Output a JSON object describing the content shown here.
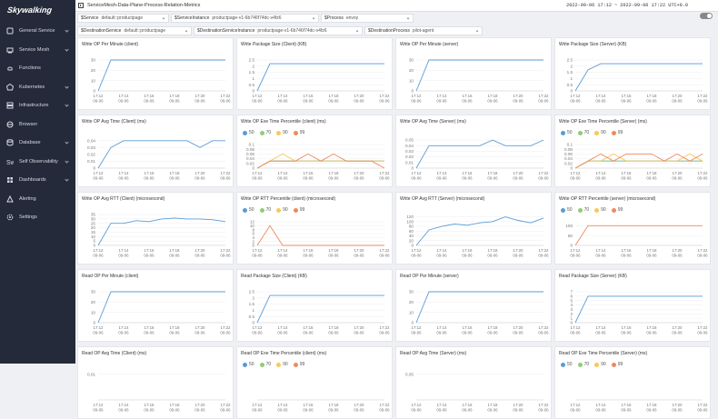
{
  "brand": {
    "name": "Skywalking"
  },
  "sidebar": {
    "items": [
      {
        "label": "General Service",
        "icon": "general-service-icon",
        "chevron": true
      },
      {
        "label": "Service Mesh",
        "icon": "service-mesh-icon",
        "chevron": true
      },
      {
        "label": "Functions",
        "icon": "functions-icon",
        "chevron": false
      },
      {
        "label": "Kubernetes",
        "icon": "kubernetes-icon",
        "chevron": true
      },
      {
        "label": "Infrastructure",
        "icon": "infrastructure-icon",
        "chevron": true
      },
      {
        "label": "Browser",
        "icon": "browser-icon",
        "chevron": false
      },
      {
        "label": "Database",
        "icon": "database-icon",
        "chevron": true
      },
      {
        "label": "Self Observability",
        "icon": "self-observability-icon",
        "chevron": true
      },
      {
        "label": "Dashboards",
        "icon": "dashboards-icon",
        "chevron": true
      },
      {
        "label": "Alerting",
        "icon": "alerting-icon",
        "chevron": false
      },
      {
        "label": "Settings",
        "icon": "settings-icon",
        "chevron": false
      }
    ]
  },
  "header": {
    "title": "ServiceMesh-Data-Plane-Process-Relation-Metrics",
    "time_range": "2022-09-06 17:12 ~ 2022-09-06 17:22  UTC+0.0"
  },
  "filters_row1": [
    {
      "label": "$Service",
      "value": "default::productpage"
    },
    {
      "label": "$ServiceInstance",
      "value": "productpage-v1-6b746f74dc-v4fz6"
    },
    {
      "label": "$Process",
      "value": "envoy"
    }
  ],
  "filters_row2": [
    {
      "label": "$DestinationService",
      "value": "default::productpage"
    },
    {
      "label": "$DestinationServiceInstance",
      "value": "productpage-v1-6b746f74dc-v4fz6"
    },
    {
      "label": "$DestinationProcess",
      "value": "pilot-agent"
    }
  ],
  "colors": {
    "blue": "#5b9bd5",
    "green": "#91cc75",
    "yellow": "#fac858",
    "orange": "#ee8a5c"
  },
  "x_ticks": [
    [
      "17:12",
      "09-06"
    ],
    [
      "17:14",
      "09-06"
    ],
    [
      "17:16",
      "09-06"
    ],
    [
      "17:18",
      "09-06"
    ],
    [
      "17:20",
      "09-06"
    ],
    [
      "17:22",
      "09-06"
    ]
  ],
  "percentile_legend": [
    "50",
    "70",
    "90",
    "99"
  ],
  "chart_data": [
    {
      "type": "line",
      "title": "Write OP Per Minute (client)",
      "yticks": [
        "0",
        "10",
        "20",
        "30"
      ],
      "ylim": [
        0,
        30
      ],
      "series": [
        {
          "color": "blue",
          "values": [
            0,
            30,
            30,
            30,
            30,
            30,
            30,
            30,
            30,
            30,
            30
          ]
        }
      ]
    },
    {
      "type": "line",
      "title": "Write Package Size (Client) (KB)",
      "yticks": [
        "0",
        "0.5",
        "1",
        "1.5",
        "2",
        "2.5"
      ],
      "ylim": [
        0,
        2.5
      ],
      "series": [
        {
          "color": "blue",
          "values": [
            0,
            2.2,
            2.2,
            2.2,
            2.2,
            2.2,
            2.2,
            2.2,
            2.2,
            2.2,
            2.2
          ]
        }
      ]
    },
    {
      "type": "line",
      "title": "Write OP Per Minute (server)",
      "yticks": [
        "0",
        "10",
        "20",
        "30"
      ],
      "ylim": [
        0,
        30
      ],
      "series": [
        {
          "color": "blue",
          "values": [
            0,
            30,
            30,
            30,
            30,
            30,
            30,
            30,
            30,
            30,
            30
          ]
        }
      ]
    },
    {
      "type": "line",
      "title": "Write Package Size (Server) (KB)",
      "yticks": [
        "0",
        "0.5",
        "1",
        "1.5",
        "2",
        "2.5"
      ],
      "ylim": [
        0,
        2.5
      ],
      "series": [
        {
          "color": "blue",
          "values": [
            0,
            1.7,
            2.2,
            2.2,
            2.2,
            2.2,
            2.2,
            2.2,
            2.2,
            2.2,
            2.2
          ]
        }
      ]
    },
    {
      "type": "line",
      "title": "Write OP Avg Time (Client) (ms)",
      "yticks": [
        "0",
        "0.01",
        "0.02",
        "0.03",
        "0.04"
      ],
      "ylim": [
        0,
        0.045
      ],
      "series": [
        {
          "color": "blue",
          "values": [
            0,
            0.03,
            0.04,
            0.04,
            0.04,
            0.04,
            0.04,
            0.04,
            0.03,
            0.04,
            0.04
          ]
        }
      ]
    },
    {
      "type": "line",
      "title": "Write OP Exe Time Percentile (client) (ms)",
      "legend": true,
      "yticks": [
        "0",
        "0.02",
        "0.04",
        "0.06",
        "0.08",
        "0.1"
      ],
      "ylim": [
        0,
        0.1
      ],
      "series": [
        {
          "color": "blue",
          "values": [
            0,
            0.03,
            0.03,
            0.03,
            0.03,
            0.03,
            0.03,
            0.03,
            0.03,
            0.03,
            0.03
          ]
        },
        {
          "color": "green",
          "values": [
            0,
            0.03,
            0.03,
            0.03,
            0.03,
            0.03,
            0.03,
            0.03,
            0.03,
            0.03,
            0.03
          ]
        },
        {
          "color": "yellow",
          "values": [
            0,
            0.03,
            0.06,
            0.03,
            0.03,
            0.03,
            0.03,
            0.03,
            0.03,
            0.03,
            0.03
          ]
        },
        {
          "color": "orange",
          "values": [
            0,
            0.03,
            0.03,
            0.03,
            0.06,
            0.03,
            0.06,
            0.03,
            0.03,
            0.03,
            0
          ]
        }
      ]
    },
    {
      "type": "line",
      "title": "Write OP Avg Time (Server) (ms)",
      "yticks": [
        "0",
        "0.01",
        "0.02",
        "0.03",
        "0.04",
        "0.05"
      ],
      "ylim": [
        0,
        0.055
      ],
      "series": [
        {
          "color": "blue",
          "values": [
            0,
            0.04,
            0.04,
            0.04,
            0.04,
            0.04,
            0.05,
            0.04,
            0.04,
            0.04,
            0.05
          ]
        }
      ]
    },
    {
      "type": "line",
      "title": "Write OP Exe Time Percentile (Server) (ms)",
      "legend": true,
      "yticks": [
        "0",
        "0.02",
        "0.04",
        "0.06",
        "0.08",
        "0.1"
      ],
      "ylim": [
        0,
        0.1
      ],
      "series": [
        {
          "color": "blue",
          "values": [
            0,
            0.03,
            0.03,
            0.03,
            0.03,
            0.03,
            0.03,
            0.03,
            0.03,
            0.03,
            0.03
          ]
        },
        {
          "color": "green",
          "values": [
            0,
            0.03,
            0.03,
            0.03,
            0.03,
            0.03,
            0.03,
            0.03,
            0.03,
            0.03,
            0.03
          ]
        },
        {
          "color": "yellow",
          "values": [
            0,
            0.03,
            0.03,
            0.06,
            0.03,
            0.03,
            0.03,
            0.03,
            0.03,
            0.06,
            0.03
          ]
        },
        {
          "color": "orange",
          "values": [
            0,
            0.03,
            0.06,
            0.03,
            0.06,
            0.06,
            0.06,
            0.03,
            0.06,
            0.03,
            0.06
          ]
        }
      ]
    },
    {
      "type": "line",
      "title": "Write OP Avg RTT (Client) (microsecond)",
      "yticks": [
        "0",
        "5",
        "10",
        "15",
        "20",
        "25",
        "30",
        "35"
      ],
      "ylim": [
        0,
        35
      ],
      "series": [
        {
          "color": "blue",
          "values": [
            0,
            25,
            25,
            28,
            27,
            30,
            31,
            30,
            30,
            29,
            27
          ]
        }
      ]
    },
    {
      "type": "line",
      "title": "Write OP RTT Percentile (client) (microsecond)",
      "legend": true,
      "yticks": [
        "0",
        "2",
        "4",
        "6",
        "8",
        "10",
        "12"
      ],
      "ylim": [
        0,
        12
      ],
      "series": [
        {
          "color": "orange",
          "values": [
            0,
            10,
            0,
            0,
            0,
            0,
            0,
            0,
            0,
            0,
            0
          ]
        }
      ]
    },
    {
      "type": "line",
      "title": "Write OP Avg RTT (Server) (microsecond)",
      "yticks": [
        "0",
        "20",
        "40",
        "60",
        "80",
        "100",
        "120"
      ],
      "ylim": [
        0,
        130
      ],
      "series": [
        {
          "color": "blue",
          "values": [
            0,
            65,
            80,
            90,
            85,
            95,
            100,
            120,
            105,
            95,
            115
          ]
        }
      ]
    },
    {
      "type": "line",
      "title": "Write OP RTT Percentile (server) (microsecond)",
      "legend": true,
      "yticks": [
        "0",
        "50",
        "100"
      ],
      "ylim": [
        0,
        120
      ],
      "series": [
        {
          "color": "orange",
          "values": [
            0,
            100,
            100,
            100,
            100,
            100,
            100,
            100,
            100,
            100,
            100
          ]
        }
      ]
    },
    {
      "type": "line",
      "title": "Read OP Per Minute (client)",
      "yticks": [
        "0",
        "10",
        "20",
        "30"
      ],
      "ylim": [
        0,
        30
      ],
      "series": [
        {
          "color": "blue",
          "values": [
            0,
            30,
            30,
            30,
            30,
            30,
            30,
            30,
            30,
            30,
            30
          ]
        }
      ]
    },
    {
      "type": "line",
      "title": "Read Package Size (Client) (KB)",
      "yticks": [
        "0",
        "0.5",
        "1",
        "1.5",
        "2",
        "2.5"
      ],
      "ylim": [
        0,
        2.5
      ],
      "series": [
        {
          "color": "blue",
          "values": [
            0,
            2.2,
            2.2,
            2.2,
            2.2,
            2.2,
            2.2,
            2.2,
            2.2,
            2.2,
            2.2
          ]
        }
      ]
    },
    {
      "type": "line",
      "title": "Read OP Per Minute (server)",
      "yticks": [
        "0",
        "10",
        "20",
        "30"
      ],
      "ylim": [
        0,
        30
      ],
      "series": [
        {
          "color": "blue",
          "values": [
            0,
            30,
            30,
            30,
            30,
            30,
            30,
            30,
            30,
            30,
            30
          ]
        }
      ]
    },
    {
      "type": "line",
      "title": "Read Package Size (Server) (KB)",
      "yticks": [
        "0",
        "1",
        "2",
        "3",
        "4",
        "5",
        "6",
        "7"
      ],
      "ylim": [
        0,
        7
      ],
      "series": [
        {
          "color": "blue",
          "values": [
            0,
            6,
            6,
            6,
            6,
            6,
            6,
            6,
            6,
            6,
            6
          ]
        }
      ]
    },
    {
      "type": "line",
      "title": "Read OP Avg Time (Client) (ms)",
      "yticks": [
        "0.01"
      ],
      "ylim": [
        0,
        0.012
      ],
      "series": []
    },
    {
      "type": "line",
      "title": "Read OP Exe Time Percentile (client) (ms)",
      "legend": true,
      "yticks": [],
      "ylim": [
        0,
        1
      ],
      "series": []
    },
    {
      "type": "line",
      "title": "Read OP Avg Time (Server) (ms)",
      "yticks": [
        "0.05"
      ],
      "ylim": [
        0,
        0.06
      ],
      "series": []
    },
    {
      "type": "line",
      "title": "Read OP Exe Time Percentile (Server) (ms)",
      "legend": true,
      "yticks": [],
      "ylim": [
        0,
        1
      ],
      "series": []
    }
  ]
}
